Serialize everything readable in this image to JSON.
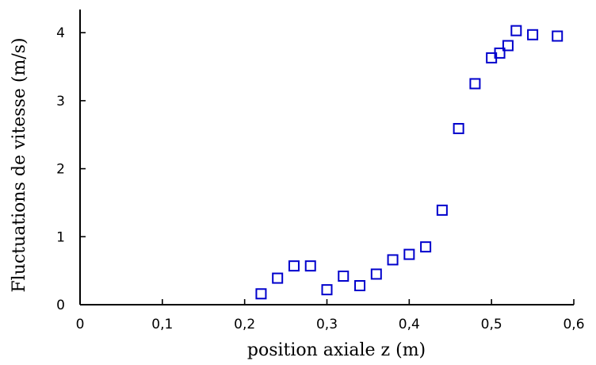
{
  "chart_data": {
    "type": "scatter",
    "title": "",
    "xlabel": "position axiale z (m)",
    "ylabel": "Fluctuations de vitesse (m/s)",
    "xlim": [
      0,
      0.6
    ],
    "ylim": [
      0,
      4
    ],
    "xticks": [
      {
        "value": 0,
        "label": "0"
      },
      {
        "value": 0.1,
        "label": "0,1"
      },
      {
        "value": 0.2,
        "label": "0,2"
      },
      {
        "value": 0.3,
        "label": "0,3"
      },
      {
        "value": 0.4,
        "label": "0,4"
      },
      {
        "value": 0.5,
        "label": "0,5"
      },
      {
        "value": 0.6,
        "label": "0,6"
      }
    ],
    "yticks": [
      {
        "value": 0,
        "label": "0"
      },
      {
        "value": 1,
        "label": "1"
      },
      {
        "value": 2,
        "label": "2"
      },
      {
        "value": 3,
        "label": "3"
      },
      {
        "value": 4,
        "label": "4"
      }
    ],
    "grid": false,
    "marker": "open-square",
    "color": "#0000cc",
    "series": [
      {
        "points": [
          {
            "x": 0.22,
            "y": 0.16
          },
          {
            "x": 0.24,
            "y": 0.39
          },
          {
            "x": 0.26,
            "y": 0.57
          },
          {
            "x": 0.28,
            "y": 0.57
          },
          {
            "x": 0.3,
            "y": 0.22
          },
          {
            "x": 0.32,
            "y": 0.42
          },
          {
            "x": 0.34,
            "y": 0.28
          },
          {
            "x": 0.36,
            "y": 0.45
          },
          {
            "x": 0.38,
            "y": 0.66
          },
          {
            "x": 0.4,
            "y": 0.74
          },
          {
            "x": 0.42,
            "y": 0.85
          },
          {
            "x": 0.44,
            "y": 1.39
          },
          {
            "x": 0.46,
            "y": 2.59
          },
          {
            "x": 0.48,
            "y": 3.25
          },
          {
            "x": 0.5,
            "y": 3.63
          },
          {
            "x": 0.51,
            "y": 3.7
          },
          {
            "x": 0.52,
            "y": 3.81
          },
          {
            "x": 0.53,
            "y": 4.03
          },
          {
            "x": 0.55,
            "y": 3.97
          },
          {
            "x": 0.58,
            "y": 3.95
          }
        ]
      }
    ]
  }
}
